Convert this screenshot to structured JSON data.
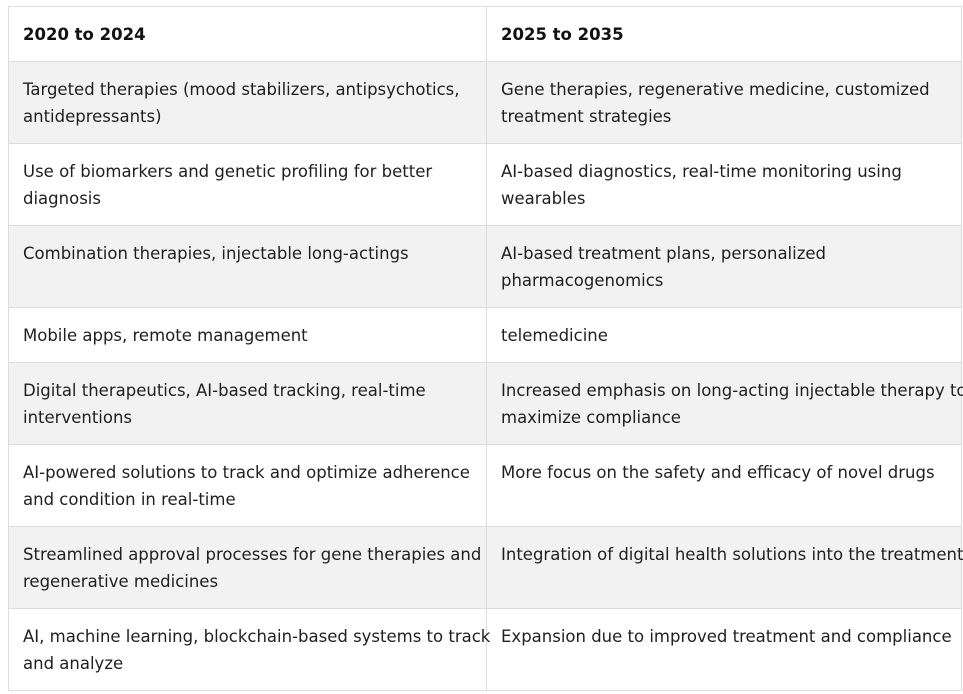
{
  "table": {
    "headers": [
      "2020 to 2024",
      "2025 to 2035"
    ],
    "rows": [
      {
        "col1": [
          "Targeted therapies (mood stabilizers, antipsychotics,",
          "antidepressants)"
        ],
        "col2": [
          "Gene therapies, regenerative medicine, customized",
          "treatment strategies"
        ]
      },
      {
        "col1": [
          "Use of biomarkers and genetic profiling for better",
          "diagnosis"
        ],
        "col2": [
          "AI-based diagnostics, real-time monitoring using",
          "wearables"
        ]
      },
      {
        "col1": [
          "Combination therapies, injectable long-actings"
        ],
        "col2": [
          "AI-based treatment plans, personalized",
          "pharmacogenomics"
        ]
      },
      {
        "col1": [
          "Mobile apps, remote management"
        ],
        "col2": [
          "telemedicine"
        ]
      },
      {
        "col1": [
          "Digital therapeutics, AI-based tracking, real-time",
          "interventions"
        ],
        "col2": [
          "Increased emphasis on long-acting injectable therapy to",
          "maximize compliance"
        ]
      },
      {
        "col1": [
          "AI-powered solutions to track and optimize adherence",
          "and condition in real-time"
        ],
        "col2": [
          "More focus on the safety and efficacy of novel drugs"
        ]
      },
      {
        "col1": [
          "Streamlined approval processes for gene therapies and",
          "regenerative medicines"
        ],
        "col2": [
          "Integration of digital health solutions into the treatment"
        ]
      },
      {
        "col1": [
          "AI, machine learning, blockchain-based systems to track",
          "and analyze"
        ],
        "col2": [
          "Expansion due to improved treatment and compliance"
        ]
      }
    ]
  }
}
